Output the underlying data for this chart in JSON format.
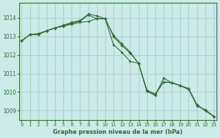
{
  "title": "Graphe pression niveau de la mer (hPa)",
  "xlabel_ticks": [
    0,
    1,
    2,
    3,
    4,
    5,
    6,
    7,
    8,
    9,
    10,
    11,
    12,
    13,
    14,
    15,
    16,
    17,
    18,
    19,
    20,
    21,
    22,
    23
  ],
  "ylim": [
    1008.5,
    1014.8
  ],
  "yticks": [
    1009,
    1010,
    1011,
    1012,
    1013,
    1014
  ],
  "background_color": "#cceae7",
  "grid_color": "#aad4d0",
  "line_color": "#2d6b2d",
  "series": [
    [
      1012.75,
      1013.1,
      1013.1,
      1013.3,
      1013.45,
      1013.6,
      1013.75,
      1013.85,
      1014.2,
      1014.1,
      1013.95,
      1013.0,
      1012.5,
      1012.1,
      1011.55,
      1010.05,
      1009.85,
      1010.55,
      1010.5,
      1010.35,
      1010.2,
      1009.3,
      1009.0,
      1008.7
    ],
    [
      1012.75,
      1013.1,
      1013.1,
      1013.3,
      1013.45,
      1013.55,
      1013.7,
      1013.82,
      1014.15,
      1013.95,
      1013.95,
      1013.05,
      1012.6,
      1012.15,
      1011.55,
      1010.1,
      1009.9,
      1010.55,
      1010.5,
      1010.35,
      1010.15,
      1009.25,
      1009.05,
      1008.7
    ],
    [
      1012.75,
      1013.1,
      1013.15,
      1013.3,
      1013.45,
      1013.55,
      1013.65,
      1013.75,
      1013.8,
      1013.95,
      1013.95,
      1012.55,
      1012.15,
      1011.65,
      1011.55,
      1010.05,
      1009.82,
      1010.75,
      1010.5,
      1010.35,
      1010.15,
      1009.3,
      1009.0,
      1008.7
    ]
  ]
}
